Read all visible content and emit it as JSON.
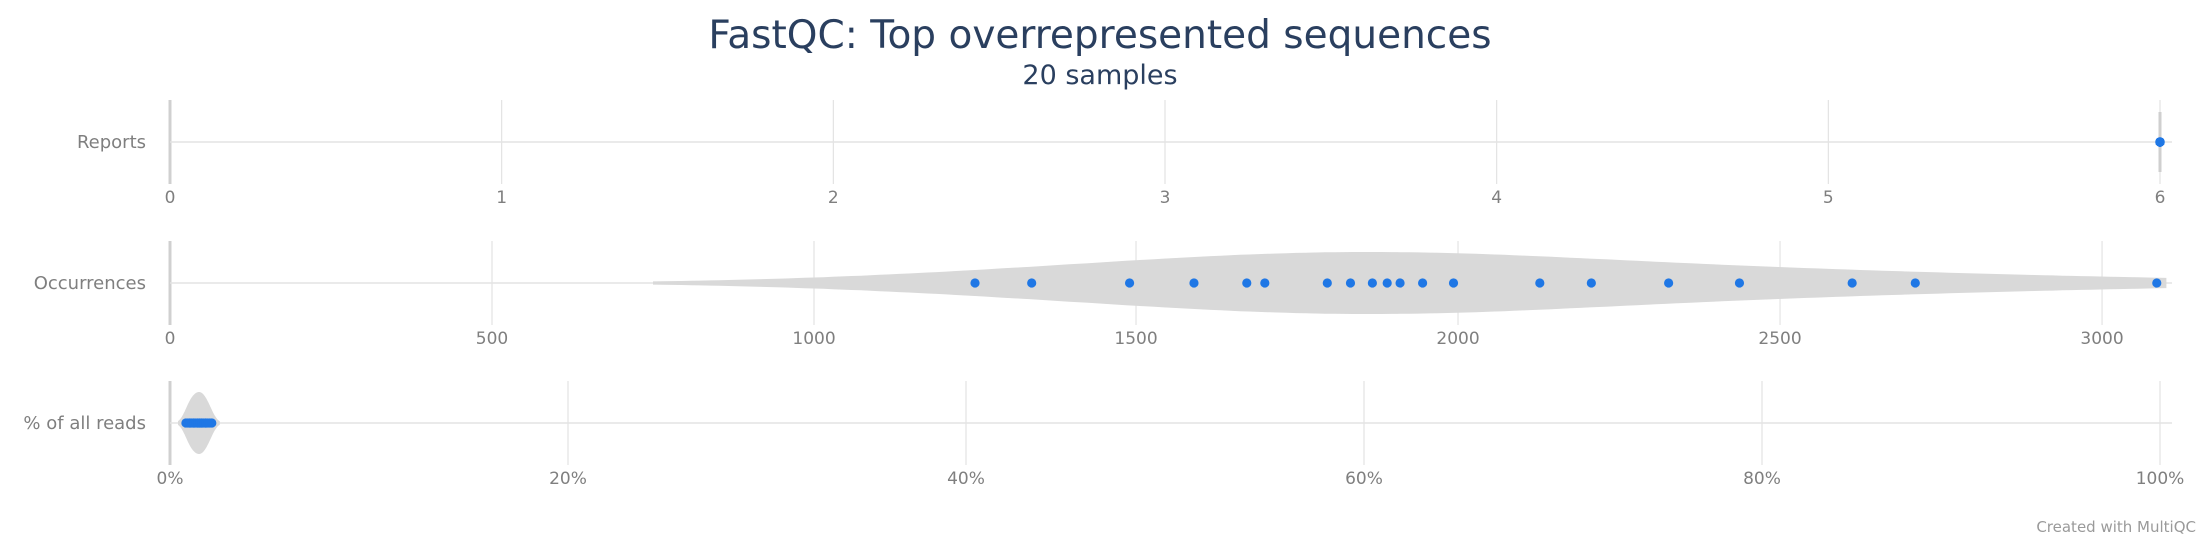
{
  "chart_data": {
    "type": "violin",
    "title": "FastQC: Top overrepresented sequences",
    "subtitle": "20 samples",
    "credit": "Created with MultiQC",
    "colors": {
      "point": "#1f77e5",
      "violin": "#d9d9d9",
      "grid": "#e3e3e3",
      "title": "#2a3f5f",
      "axis_text": "#7f7f7f"
    },
    "grid": true,
    "panels": [
      {
        "label": "Reports",
        "range": [
          0,
          6
        ],
        "ticks": [
          0,
          1,
          2,
          3,
          4,
          5,
          6
        ],
        "tick_labels": [
          "0",
          "1",
          "2",
          "3",
          "4",
          "5",
          "6"
        ],
        "values": [
          6,
          6,
          6,
          6,
          6,
          6,
          6,
          6,
          6,
          6,
          6,
          6,
          6,
          6,
          6,
          6,
          6,
          6,
          6,
          6
        ],
        "violin_extent": [
          5.995,
          6.005
        ]
      },
      {
        "label": "Occurrences",
        "range": [
          0,
          3090
        ],
        "ticks": [
          0,
          500,
          1000,
          1500,
          2000,
          2500,
          3000
        ],
        "tick_labels": [
          "0",
          "500",
          "1000",
          "1500",
          "2000",
          "2500",
          "3000"
        ],
        "values": [
          1250,
          1338,
          1490,
          1590,
          1672,
          1700,
          1797,
          1833,
          1867,
          1890,
          1910,
          1945,
          1993,
          2127,
          2207,
          2327,
          2437,
          2612,
          2710,
          3085
        ],
        "violin_extent": [
          750,
          3100
        ]
      },
      {
        "label": "% of all reads",
        "range": [
          0,
          100
        ],
        "ticks": [
          0,
          20,
          40,
          60,
          80,
          100
        ],
        "tick_labels": [
          "0%",
          "20%",
          "40%",
          "60%",
          "80%",
          "100%"
        ],
        "values": [
          0.8,
          0.9,
          1.0,
          1.0,
          1.1,
          1.2,
          1.2,
          1.3,
          1.4,
          1.4,
          1.5,
          1.5,
          1.6,
          1.6,
          1.7,
          1.8,
          1.8,
          1.9,
          2.0,
          2.1
        ],
        "violin_extent": [
          0.4,
          2.5
        ]
      }
    ]
  }
}
